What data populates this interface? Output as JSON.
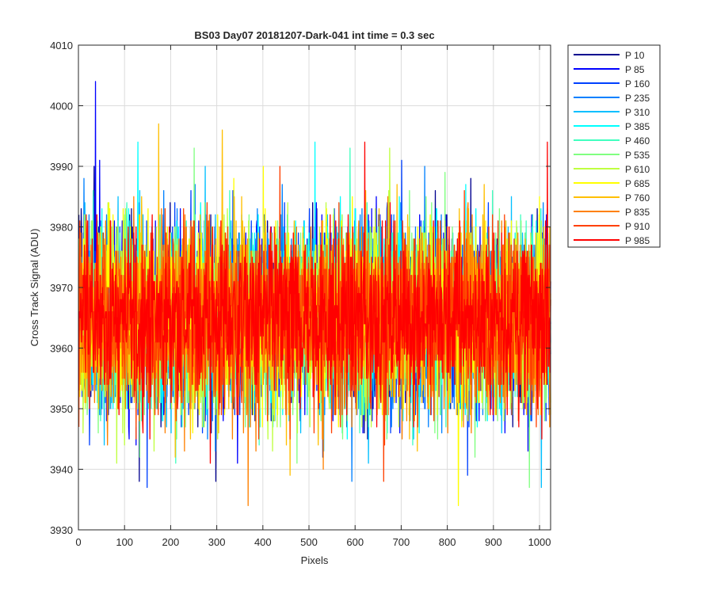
{
  "chart_data": {
    "type": "line",
    "title": "BS03 Day07 20181207-Dark-041 int time = 0.3 sec",
    "xlabel": "Pixels",
    "ylabel": "Cross Track Signal (ADU)",
    "xlim": [
      0,
      1024
    ],
    "ylim": [
      3930,
      4010
    ],
    "xticks": [
      0,
      100,
      200,
      300,
      400,
      500,
      600,
      700,
      800,
      900,
      1000
    ],
    "yticks": [
      3930,
      3940,
      3950,
      3960,
      3970,
      3980,
      3990,
      4000,
      4010
    ],
    "grid": true,
    "legend_location": "outside-top-right",
    "n_points_per_series": 1024,
    "series": [
      {
        "name": "P 10",
        "color": "#00008f",
        "mean": 3965,
        "spread": 7.5,
        "min": 3938,
        "max": 3990,
        "spikes": [
          [
            33,
            3990
          ],
          [
            131,
            3938
          ],
          [
            297,
            3938
          ]
        ]
      },
      {
        "name": "P 85",
        "color": "#0000ff",
        "mean": 3965,
        "spread": 7.5,
        "min": 3941,
        "max": 4004,
        "spikes": [
          [
            36,
            4004
          ],
          [
            45,
            3991
          ],
          [
            344,
            3941
          ]
        ]
      },
      {
        "name": "P 160",
        "color": "#0040ff",
        "mean": 3965,
        "spread": 7.5,
        "min": 3937,
        "max": 3991,
        "spikes": [
          [
            148,
            3937
          ],
          [
            700,
            3991
          ],
          [
            843,
            3939
          ]
        ]
      },
      {
        "name": "P 235",
        "color": "#0080ff",
        "mean": 3965,
        "spread": 7.5,
        "min": 3938,
        "max": 3990,
        "spikes": [
          [
            592,
            3938
          ],
          [
            750,
            3990
          ]
        ]
      },
      {
        "name": "P 310",
        "color": "#00bfff",
        "mean": 3965,
        "spread": 7.5,
        "min": 3937,
        "max": 3990,
        "spikes": [
          [
            1003,
            3937
          ],
          [
            274,
            3990
          ]
        ]
      },
      {
        "name": "P 385",
        "color": "#00ffff",
        "mean": 3965,
        "spread": 7.5,
        "min": 3943,
        "max": 3994,
        "spikes": [
          [
            128,
            3994
          ],
          [
            512,
            3994
          ]
        ]
      },
      {
        "name": "P 460",
        "color": "#40ffbf",
        "mean": 3965,
        "spread": 7.5,
        "min": 3940,
        "max": 3993,
        "spikes": [
          [
            588,
            3993
          ],
          [
            210,
            3941
          ]
        ]
      },
      {
        "name": "P 535",
        "color": "#80ff80",
        "mean": 3965,
        "spread": 7.5,
        "min": 3937,
        "max": 3993,
        "spikes": [
          [
            250,
            3993
          ],
          [
            977,
            3937
          ]
        ]
      },
      {
        "name": "P 610",
        "color": "#bfff40",
        "mean": 3965,
        "spread": 7.5,
        "min": 3941,
        "max": 3993,
        "spikes": [
          [
            674,
            3993
          ],
          [
            82,
            3941
          ]
        ]
      },
      {
        "name": "P 685",
        "color": "#ffff00",
        "mean": 3965,
        "spread": 7.5,
        "min": 3934,
        "max": 3990,
        "spikes": [
          [
            823,
            3934
          ],
          [
            400,
            3990
          ]
        ]
      },
      {
        "name": "P 760",
        "color": "#ffbf00",
        "mean": 3965,
        "spread": 7.5,
        "min": 3939,
        "max": 3997,
        "spikes": [
          [
            173,
            3997
          ],
          [
            311,
            3996
          ],
          [
            458,
            3939
          ]
        ]
      },
      {
        "name": "P 835",
        "color": "#ff8000",
        "mean": 3965,
        "spread": 7.5,
        "min": 3934,
        "max": 3992,
        "spikes": [
          [
            367,
            3934
          ],
          [
            530,
            3940
          ]
        ]
      },
      {
        "name": "P 910",
        "color": "#ff4000",
        "mean": 3965,
        "spread": 7.5,
        "min": 3938,
        "max": 3992,
        "spikes": [
          [
            661,
            3938
          ]
        ]
      },
      {
        "name": "P 985",
        "color": "#ff0000",
        "mean": 3965,
        "spread": 7.0,
        "min": 3941,
        "max": 3994,
        "spikes": [
          [
            620,
            3994
          ],
          [
            1016,
            3994
          ],
          [
            285,
            3941
          ]
        ]
      }
    ]
  }
}
